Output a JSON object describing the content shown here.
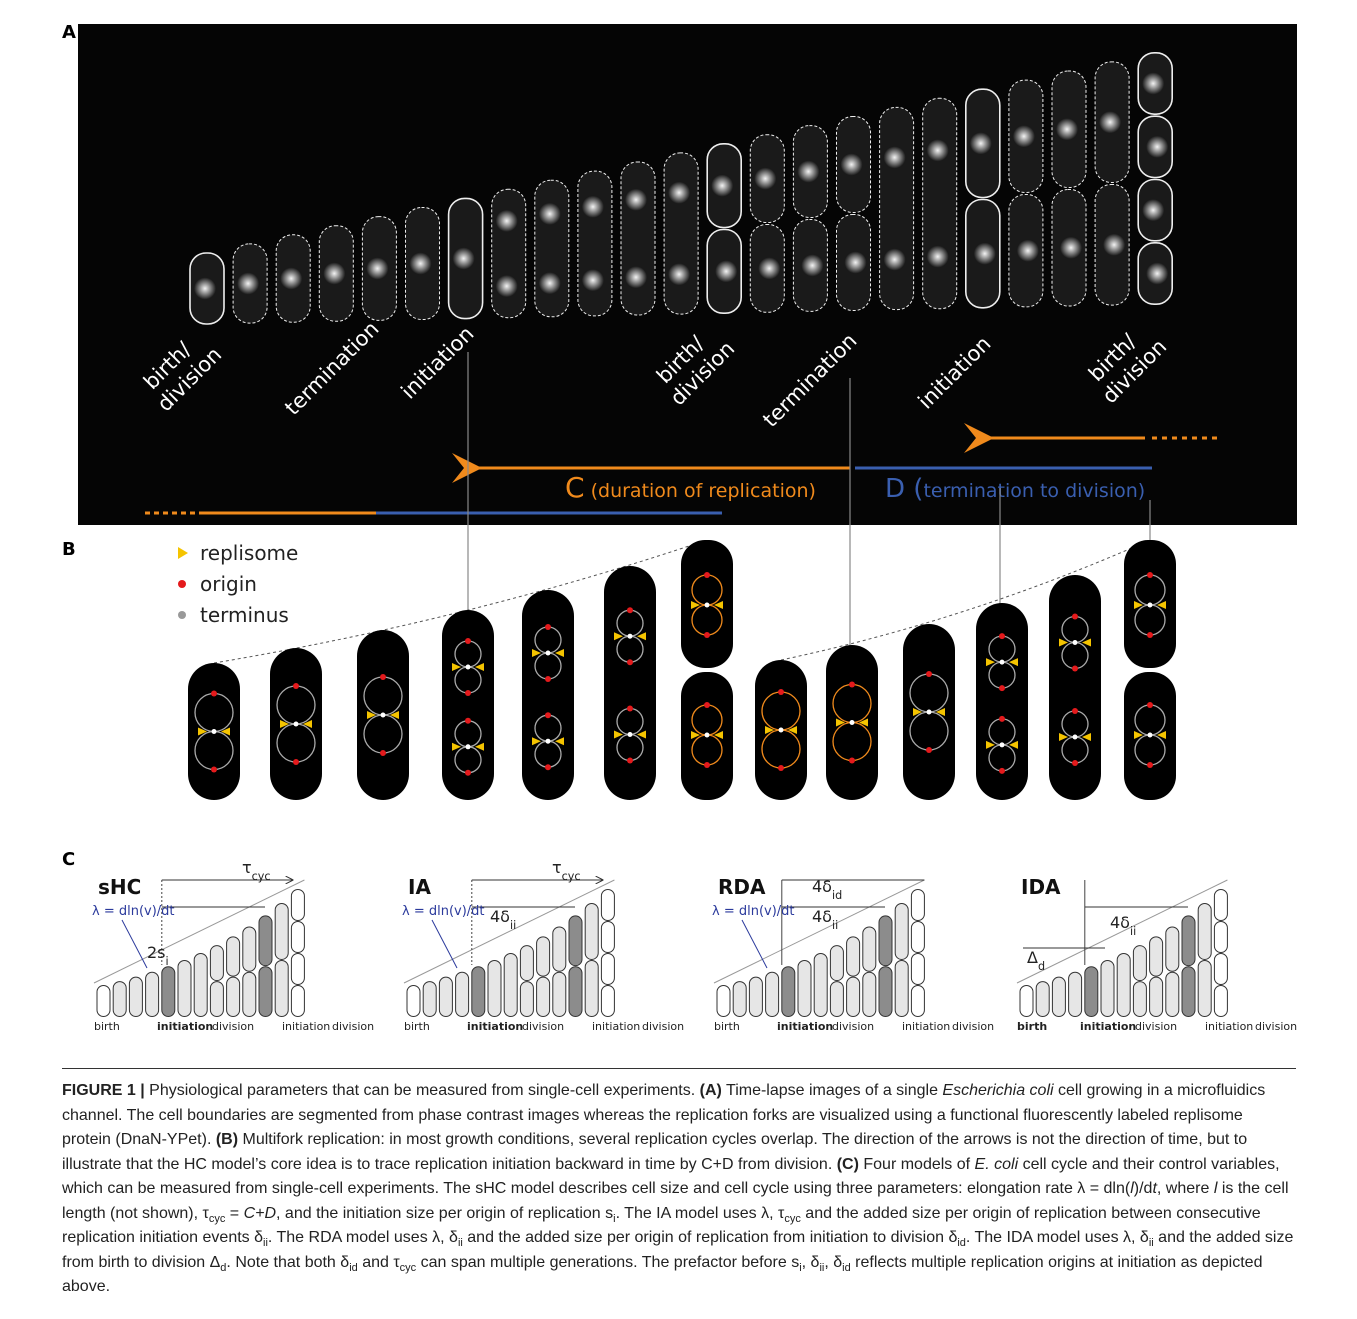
{
  "panels": {
    "a": {
      "label": "A",
      "events": [
        [
          "birth/",
          "division"
        ],
        [
          "termination"
        ],
        [
          "initiation"
        ],
        [
          "birth/",
          "division"
        ],
        [
          "termination"
        ],
        [
          "initiation"
        ],
        [
          "birth/",
          "division"
        ]
      ],
      "c_arrow": [
        {
          "text": "C",
          "style": "big"
        },
        {
          "text": " (duration of replication)"
        }
      ],
      "d_arrow": [
        {
          "text": "D (",
          "style": "big"
        },
        {
          "text": "termination to division)"
        }
      ]
    },
    "b": {
      "label": "B",
      "legend": [
        "replisome",
        "origin",
        "terminus"
      ]
    },
    "c": {
      "label": "C",
      "models": [
        {
          "title": "sHC",
          "texts": {
            "tau": [
              {
                "text": "τ"
              },
              {
                "text": "cyc",
                "style": "sub"
              }
            ],
            "lambda": [
              {
                "text": "λ = dln(v)/dt"
              }
            ],
            "p1": [
              {
                "text": "2s"
              },
              {
                "text": "i",
                "style": "sub"
              }
            ]
          },
          "axis": [
            {
              "text": "birth"
            },
            {
              "text": "initiation",
              "style": "b"
            },
            {
              "text": "division"
            },
            {
              "text": "initiation"
            },
            {
              "text": "division"
            }
          ]
        },
        {
          "title": "IA",
          "texts": {
            "tau": [
              {
                "text": "τ"
              },
              {
                "text": "cyc",
                "style": "sub"
              }
            ],
            "lambda": [
              {
                "text": "λ = dln(v)/dt"
              }
            ],
            "p1": [
              {
                "text": "4δ"
              },
              {
                "text": "ii",
                "style": "sub"
              }
            ]
          },
          "axis": [
            {
              "text": "birth"
            },
            {
              "text": "initiation",
              "style": "b"
            },
            {
              "text": "division"
            },
            {
              "text": "initiation"
            },
            {
              "text": "division"
            }
          ]
        },
        {
          "title": "RDA",
          "texts": {
            "p2": [
              {
                "text": "4δ"
              },
              {
                "text": "id",
                "style": "sub"
              }
            ],
            "p1": [
              {
                "text": "4δ"
              },
              {
                "text": "ii",
                "style": "sub"
              }
            ],
            "lambda": [
              {
                "text": "λ = dln(v)/dt"
              }
            ]
          },
          "axis": [
            {
              "text": "birth"
            },
            {
              "text": "initiation",
              "style": "b"
            },
            {
              "text": "division"
            },
            {
              "text": "initiation"
            },
            {
              "text": "division"
            }
          ]
        },
        {
          "title": "IDA",
          "texts": {
            "p1": [
              {
                "text": "4δ"
              },
              {
                "text": "ii",
                "style": "sub"
              }
            ],
            "delta": [
              {
                "text": "Δ"
              },
              {
                "text": "d",
                "style": "sub"
              }
            ]
          },
          "axis": [
            {
              "text": "birth",
              "style": "b"
            },
            {
              "text": "initiation",
              "style": "b"
            },
            {
              "text": "division"
            },
            {
              "text": "initiation"
            },
            {
              "text": "division"
            }
          ]
        }
      ]
    }
  },
  "caption": [
    {
      "text": "FIGURE 1 |",
      "style": "b"
    },
    {
      "text": " Physiological parameters that can be measured from single-cell experiments. "
    },
    {
      "text": "(A)",
      "style": "b"
    },
    {
      "text": " Time-lapse images of a single "
    },
    {
      "text": "Escherichia coli",
      "style": "i"
    },
    {
      "text": " cell growing in a microfluidics channel. The cell boundaries are segmented from phase contrast images whereas the replication forks are visualized using a functional fluorescently labeled replisome protein (DnaN-YPet). "
    },
    {
      "text": "(B)",
      "style": "b"
    },
    {
      "text": " Multifork replication: in most growth conditions, several replication cycles overlap. The direction of the arrows is not the direction of time, but to illustrate that the HC model’s core idea is to trace replication initiation backward in time by C+D from division. "
    },
    {
      "text": "(C)",
      "style": "b"
    },
    {
      "text": " Four models of "
    },
    {
      "text": "E. coli",
      "style": "i"
    },
    {
      "text": " cell cycle and their control variables, which can be measured from single-cell experiments. The sHC model describes cell size and cell cycle using three parameters: elongation rate λ = dln("
    },
    {
      "text": "l",
      "style": "i"
    },
    {
      "text": ")/d"
    },
    {
      "text": "t",
      "style": "i"
    },
    {
      "text": ", where "
    },
    {
      "text": "l",
      "style": "i"
    },
    {
      "text": " is the cell length (not shown), τ"
    },
    {
      "text": "cyc",
      "style": "sub"
    },
    {
      "text": " = "
    },
    {
      "text": "C+D",
      "style": "i"
    },
    {
      "text": ", and the initiation size per origin of replication s"
    },
    {
      "text": "i",
      "style": "sub"
    },
    {
      "text": ". The IA model uses λ, τ"
    },
    {
      "text": "cyc",
      "style": "sub"
    },
    {
      "text": " and the added size per origin of replication between consecutive replication initiation events δ"
    },
    {
      "text": "ii",
      "style": "sub"
    },
    {
      "text": ". The RDA model uses λ, δ"
    },
    {
      "text": "ii",
      "style": "sub"
    },
    {
      "text": " and the added size per origin of replication from initiation to division δ"
    },
    {
      "text": "id",
      "style": "sub"
    },
    {
      "text": ". The IDA model uses λ, δ"
    },
    {
      "text": "ii",
      "style": "sub"
    },
    {
      "text": " and the added size from birth to division Δ"
    },
    {
      "text": "d",
      "style": "sub"
    },
    {
      "text": ". Note that both δ"
    },
    {
      "text": "id",
      "style": "sub"
    },
    {
      "text": " and τ"
    },
    {
      "text": "cyc",
      "style": "sub"
    },
    {
      "text": " can span multiple generations. The prefactor before s"
    },
    {
      "text": "i",
      "style": "sub"
    },
    {
      "text": ", δ"
    },
    {
      "text": "ii",
      "style": "sub"
    },
    {
      "text": ", δ"
    },
    {
      "text": "id",
      "style": "sub"
    },
    {
      "text": " reflects multiple replication origins at initiation as depicted above."
    }
  ]
}
